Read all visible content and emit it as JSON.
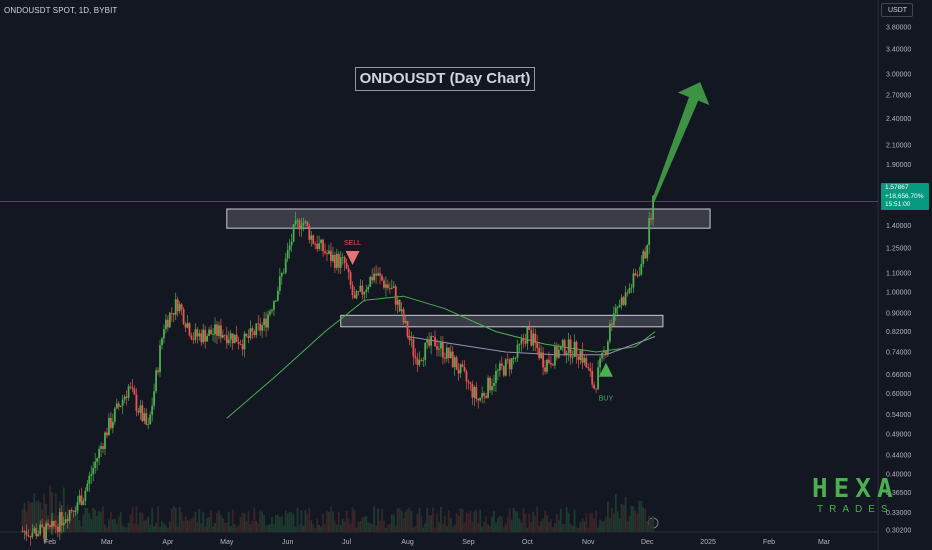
{
  "header": {
    "symbol_line": "ONDOUSDT SPOT, 1D, BYBIT"
  },
  "annotations": {
    "title": "ONDOUSDT (Day Chart)",
    "sell_label": "SELL",
    "buy_label": "BUY"
  },
  "price_axis": {
    "currency_label": "USDT",
    "last_price": "1.57867",
    "change": "+18,656.70%",
    "countdown": "15:51:00"
  },
  "logo": {
    "line1": "HEXA",
    "line2": "TRADES"
  },
  "colors": {
    "background": "#131722",
    "up": "#26a69a",
    "up_candle": "#4caf50",
    "down_candle": "#ef5350",
    "ma_green": "#4caf50",
    "ma_purple": "#9c8fb4",
    "arrow": "#43a047",
    "price_tag": "#089981"
  },
  "chart_data": {
    "type": "candlestick",
    "scale": "log",
    "ylim": [
      0.3,
      4.0
    ],
    "y_ticks": [
      "3.80000",
      "3.40000",
      "3.00000",
      "2.70000",
      "2.40000",
      "2.10000",
      "1.90000",
      "1.40000",
      "1.25000",
      "1.10000",
      "1.00000",
      "0.90000",
      "0.82000",
      "0.74000",
      "0.66000",
      "0.60000",
      "0.54000",
      "0.49000",
      "0.44000",
      "0.40000",
      "0.36500",
      "0.33000",
      "0.30200"
    ],
    "x_ticks": [
      "Feb",
      "Mar",
      "Apr",
      "May",
      "Jun",
      "Jul",
      "Aug",
      "Sep",
      "Oct",
      "Nov",
      "Dec",
      "2025",
      "Feb",
      "Mar"
    ],
    "price_path": [
      [
        "2024-01-18",
        0.3
      ],
      [
        "2024-02-01",
        0.3
      ],
      [
        "2024-02-18",
        0.36
      ],
      [
        "2024-03-01",
        0.5
      ],
      [
        "2024-03-12",
        0.62
      ],
      [
        "2024-03-22",
        0.5
      ],
      [
        "2024-03-30",
        0.85
      ],
      [
        "2024-04-06",
        0.95
      ],
      [
        "2024-04-14",
        0.8
      ],
      [
        "2024-04-28",
        0.82
      ],
      [
        "2024-05-10",
        0.78
      ],
      [
        "2024-05-20",
        0.85
      ],
      [
        "2024-05-28",
        1.05
      ],
      [
        "2024-06-04",
        1.35
      ],
      [
        "2024-06-08",
        1.45
      ],
      [
        "2024-06-14",
        1.3
      ],
      [
        "2024-06-22",
        1.2
      ],
      [
        "2024-06-30",
        1.15
      ],
      [
        "2024-07-05",
        0.95
      ],
      [
        "2024-07-15",
        1.1
      ],
      [
        "2024-07-25",
        1.0
      ],
      [
        "2024-08-05",
        0.72
      ],
      [
        "2024-08-15",
        0.78
      ],
      [
        "2024-08-25",
        0.7
      ],
      [
        "2024-09-06",
        0.58
      ],
      [
        "2024-09-15",
        0.66
      ],
      [
        "2024-09-25",
        0.72
      ],
      [
        "2024-10-01",
        0.82
      ],
      [
        "2024-10-10",
        0.7
      ],
      [
        "2024-10-20",
        0.76
      ],
      [
        "2024-10-28",
        0.74
      ],
      [
        "2024-11-04",
        0.62
      ],
      [
        "2024-11-10",
        0.76
      ],
      [
        "2024-11-14",
        0.92
      ],
      [
        "2024-11-20",
        0.98
      ],
      [
        "2024-11-26",
        1.1
      ],
      [
        "2024-11-30",
        1.22
      ],
      [
        "2024-12-02",
        1.4
      ],
      [
        "2024-12-04",
        1.58
      ]
    ],
    "ma_long": [
      [
        "2024-05-01",
        0.53
      ],
      [
        "2024-05-25",
        0.65
      ],
      [
        "2024-06-20",
        0.82
      ],
      [
        "2024-07-10",
        0.96
      ],
      [
        "2024-07-30",
        0.98
      ],
      [
        "2024-08-20",
        0.92
      ],
      [
        "2024-09-15",
        0.82
      ],
      [
        "2024-10-10",
        0.77
      ],
      [
        "2024-11-05",
        0.74
      ],
      [
        "2024-11-25",
        0.76
      ],
      [
        "2024-12-05",
        0.82
      ]
    ],
    "ma_short": [
      [
        "2024-08-01",
        0.8
      ],
      [
        "2024-08-25",
        0.77
      ],
      [
        "2024-09-20",
        0.74
      ],
      [
        "2024-10-15",
        0.73
      ],
      [
        "2024-11-10",
        0.73
      ],
      [
        "2024-12-05",
        0.8
      ]
    ],
    "resistance_zone": {
      "from": "2024-05-01",
      "to": "2025-01-02",
      "low": 1.38,
      "high": 1.52
    },
    "support_zone": {
      "from": "2024-06-28",
      "to": "2024-12-09",
      "low": 0.84,
      "high": 0.89
    },
    "sell_marker": {
      "date": "2024-07-04",
      "price": 1.17
    },
    "buy_marker": {
      "date": "2024-11-10",
      "price": 0.66
    },
    "projection": {
      "from": [
        "2024-12-04",
        1.58
      ],
      "to": [
        "2024-12-28",
        2.88
      ]
    },
    "last_price": 1.57867
  }
}
